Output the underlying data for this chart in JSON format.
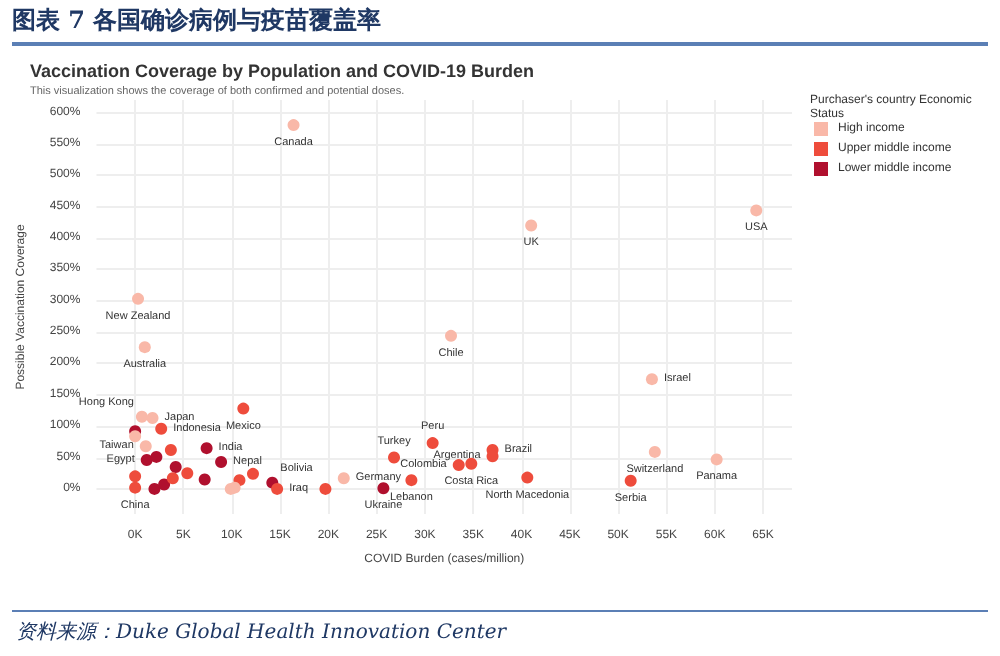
{
  "chart_data": {
    "type": "scatter",
    "title": "图表 7 各国确诊病例与疫苗覆盖率",
    "subtitle": "Vaccination Coverage by Population and COVID-19 Burden",
    "xlabel": "COVID Burden (cases/million)",
    "ylabel": "Possible Vaccination Coverage",
    "legend_title": "Purchaser's country Economic  Status",
    "legend": "top right",
    "grid": true,
    "marker": "circle",
    "xlim": [
      -4000,
      68000
    ],
    "ylim": [
      -40,
      620
    ],
    "xticks": [
      {
        "value": 0,
        "label": "0K"
      },
      {
        "value": 5000,
        "label": "5K"
      },
      {
        "value": 10000,
        "label": "10K"
      },
      {
        "value": 15000,
        "label": "15K"
      },
      {
        "value": 20000,
        "label": "20K"
      },
      {
        "value": 25000,
        "label": "25K"
      },
      {
        "value": 30000,
        "label": "30K"
      },
      {
        "value": 35000,
        "label": "35K"
      },
      {
        "value": 40000,
        "label": "40K"
      },
      {
        "value": 45000,
        "label": "45K"
      },
      {
        "value": 50000,
        "label": "50K"
      },
      {
        "value": 55000,
        "label": "55K"
      },
      {
        "value": 60000,
        "label": "60K"
      },
      {
        "value": 65000,
        "label": "65K"
      }
    ],
    "yticks": [
      {
        "value": 0,
        "label": "0%"
      },
      {
        "value": 50,
        "label": "50%"
      },
      {
        "value": 100,
        "label": "100%"
      },
      {
        "value": 150,
        "label": "150%"
      },
      {
        "value": 200,
        "label": "200%"
      },
      {
        "value": 250,
        "label": "250%"
      },
      {
        "value": 300,
        "label": "300%"
      },
      {
        "value": 350,
        "label": "350%"
      },
      {
        "value": 400,
        "label": "400%"
      },
      {
        "value": 450,
        "label": "450%"
      },
      {
        "value": 500,
        "label": "500%"
      },
      {
        "value": 550,
        "label": "550%"
      },
      {
        "value": 600,
        "label": "600%"
      }
    ],
    "series": [
      {
        "name": "High income",
        "color": "#f9b8a8",
        "x": [
          16400,
          41000,
          64300,
          300,
          1000,
          32700,
          53500,
          53800,
          60200,
          700,
          1800,
          1100,
          21600,
          0,
          9900,
          10300
        ],
        "values": [
          580,
          420,
          444,
          303,
          226,
          244,
          175,
          59,
          47,
          115,
          113,
          68,
          17,
          84,
          0,
          2
        ]
      },
      {
        "name": "Upper middle income",
        "color": "#ee4c3c",
        "x": [
          11200,
          2700,
          30800,
          26800,
          34800,
          33500,
          37000,
          37000,
          51300,
          40600,
          28600,
          14700,
          0,
          19700,
          3700,
          3900,
          0,
          5400,
          10800,
          12200
        ],
        "values": [
          128,
          96,
          73,
          50,
          40,
          38,
          62,
          52,
          13,
          18,
          14,
          0,
          2,
          0,
          62,
          17,
          20,
          25,
          14,
          24
        ]
      },
      {
        "name": "Lower middle income",
        "color": "#b0102e",
        "x": [
          7400,
          8900,
          1200,
          14200,
          25700,
          0,
          2200,
          4200,
          2000,
          3000,
          7200
        ],
        "values": [
          65,
          43,
          46,
          10,
          1,
          92,
          51,
          35,
          0,
          7,
          15
        ]
      }
    ],
    "annotations": [
      "This visualization shows the coverage of both confirmed and potential doses.",
      "资料来源：Duke Global Health Innovation Center",
      {
        "text": "Canada",
        "x": 16400,
        "y": 580
      },
      {
        "text": "UK",
        "x": 41000,
        "y": 420
      },
      {
        "text": "USA",
        "x": 64300,
        "y": 444
      },
      {
        "text": "New Zealand",
        "x": 300,
        "y": 303
      },
      {
        "text": "Australia",
        "x": 1000,
        "y": 226
      },
      {
        "text": "Chile",
        "x": 32700,
        "y": 244
      },
      {
        "text": "Israel",
        "x": 53500,
        "y": 175
      },
      {
        "text": "Switzerland",
        "x": 53800,
        "y": 59
      },
      {
        "text": "Panama",
        "x": 60200,
        "y": 47
      },
      {
        "text": "Serbia",
        "x": 51300,
        "y": 13
      },
      {
        "text": "North Macedonia",
        "x": 40600,
        "y": 18
      },
      {
        "text": "Brazil",
        "x": 37000,
        "y": 62
      },
      {
        "text": "Argentina",
        "x": 37000,
        "y": 52
      },
      {
        "text": "Colombia",
        "x": 33500,
        "y": 38
      },
      {
        "text": "Costa Rica",
        "x": 34800,
        "y": 40
      },
      {
        "text": "Peru",
        "x": 30800,
        "y": 73
      },
      {
        "text": "Turkey",
        "x": 26800,
        "y": 50
      },
      {
        "text": "Lebanon",
        "x": 28600,
        "y": 14
      },
      {
        "text": "Ukraine",
        "x": 25700,
        "y": 1
      },
      {
        "text": "Germany",
        "x": 21600,
        "y": 17
      },
      {
        "text": "Iraq",
        "x": 14700,
        "y": 0
      },
      {
        "text": "Bolivia",
        "x": 14200,
        "y": 10
      },
      {
        "text": "Mexico",
        "x": 11200,
        "y": 128
      },
      {
        "text": "India",
        "x": 7400,
        "y": 65
      },
      {
        "text": "Nepal",
        "x": 8900,
        "y": 43
      },
      {
        "text": "Hong Kong",
        "x": 700,
        "y": 115
      },
      {
        "text": "Japan",
        "x": 1800,
        "y": 113
      },
      {
        "text": "Indonesia",
        "x": 2700,
        "y": 96
      },
      {
        "text": "Taiwan",
        "x": 1100,
        "y": 68
      },
      {
        "text": "Egypt",
        "x": 1200,
        "y": 46
      },
      {
        "text": "China",
        "x": 0,
        "y": 2
      }
    ]
  }
}
